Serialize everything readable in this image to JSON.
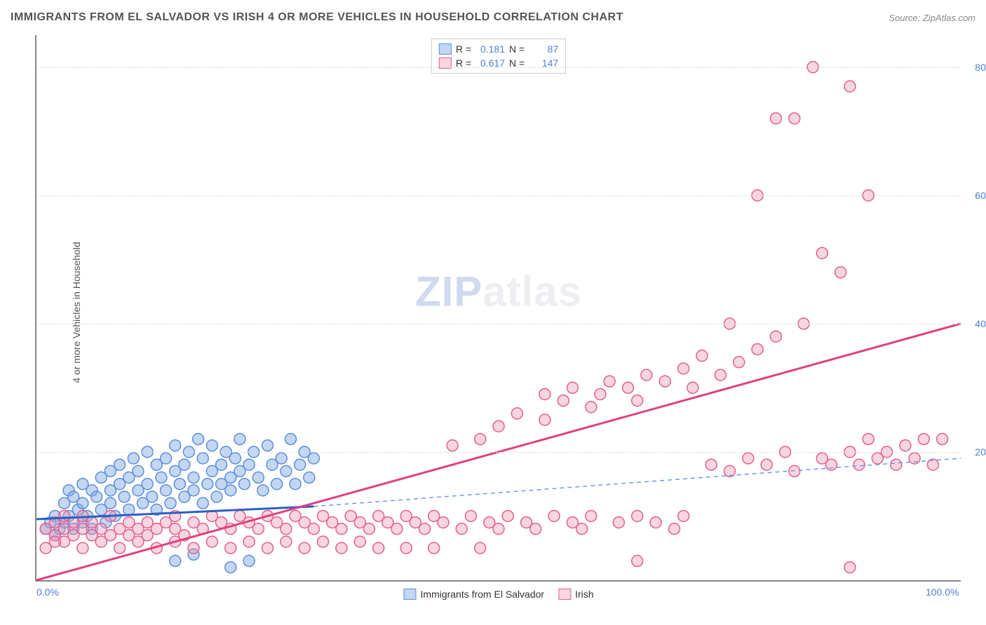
{
  "title": "IMMIGRANTS FROM EL SALVADOR VS IRISH 4 OR MORE VEHICLES IN HOUSEHOLD CORRELATION CHART",
  "source": "Source: ZipAtlas.com",
  "y_axis_label": "4 or more Vehicles in Household",
  "watermark": {
    "prefix": "ZIP",
    "suffix": "atlas"
  },
  "chart": {
    "type": "scatter",
    "xlim": [
      0,
      100
    ],
    "ylim": [
      0,
      85
    ],
    "x_ticks": [
      {
        "value": 0,
        "label": "0.0%"
      },
      {
        "value": 100,
        "label": "100.0%"
      }
    ],
    "y_ticks": [
      {
        "value": 20,
        "label": "20.0%"
      },
      {
        "value": 40,
        "label": "40.0%"
      },
      {
        "value": 60,
        "label": "60.0%"
      },
      {
        "value": 80,
        "label": "80.0%"
      }
    ],
    "grid_color": "#dddddd",
    "axis_color": "#888888",
    "background_color": "#ffffff",
    "marker_radius": 8,
    "marker_stroke_width": 1.5,
    "line_width_solid": 3,
    "line_width_dashed": 1.5,
    "series": [
      {
        "name": "Immigrants from El Salvador",
        "fill": "rgba(122,165,230,0.45)",
        "stroke": "#5b8fd6",
        "R": "0.181",
        "N": "87",
        "regression": {
          "x1": 0,
          "y1": 9.5,
          "x2": 30,
          "y2": 11.5,
          "style": "solid",
          "color": "#2b5fc4"
        },
        "regression_ext": {
          "x1": 30,
          "y1": 11.5,
          "x2": 100,
          "y2": 19,
          "style": "dashed",
          "color": "#6a9be0"
        },
        "points": [
          [
            1,
            8
          ],
          [
            1.5,
            9
          ],
          [
            2,
            10
          ],
          [
            2,
            7
          ],
          [
            2.5,
            8
          ],
          [
            3,
            12
          ],
          [
            3,
            9
          ],
          [
            3.5,
            14
          ],
          [
            3.5,
            10
          ],
          [
            4,
            8
          ],
          [
            4,
            13
          ],
          [
            4.5,
            11
          ],
          [
            5,
            15
          ],
          [
            5,
            9
          ],
          [
            5,
            12
          ],
          [
            5.5,
            10
          ],
          [
            6,
            14
          ],
          [
            6,
            8
          ],
          [
            6.5,
            13
          ],
          [
            7,
            16
          ],
          [
            7,
            11
          ],
          [
            7.5,
            9
          ],
          [
            8,
            17
          ],
          [
            8,
            12
          ],
          [
            8,
            14
          ],
          [
            8.5,
            10
          ],
          [
            9,
            15
          ],
          [
            9,
            18
          ],
          [
            9.5,
            13
          ],
          [
            10,
            11
          ],
          [
            10,
            16
          ],
          [
            10.5,
            19
          ],
          [
            11,
            14
          ],
          [
            11,
            17
          ],
          [
            11.5,
            12
          ],
          [
            12,
            15
          ],
          [
            12,
            20
          ],
          [
            12.5,
            13
          ],
          [
            13,
            18
          ],
          [
            13,
            11
          ],
          [
            13.5,
            16
          ],
          [
            14,
            14
          ],
          [
            14,
            19
          ],
          [
            14.5,
            12
          ],
          [
            15,
            17
          ],
          [
            15,
            21
          ],
          [
            15.5,
            15
          ],
          [
            16,
            13
          ],
          [
            16,
            18
          ],
          [
            16.5,
            20
          ],
          [
            17,
            14
          ],
          [
            17,
            16
          ],
          [
            17.5,
            22
          ],
          [
            18,
            12
          ],
          [
            18,
            19
          ],
          [
            18.5,
            15
          ],
          [
            19,
            17
          ],
          [
            19,
            21
          ],
          [
            19.5,
            13
          ],
          [
            20,
            18
          ],
          [
            20,
            15
          ],
          [
            20.5,
            20
          ],
          [
            21,
            16
          ],
          [
            21,
            14
          ],
          [
            21.5,
            19
          ],
          [
            22,
            22
          ],
          [
            22,
            17
          ],
          [
            22.5,
            15
          ],
          [
            23,
            18
          ],
          [
            23.5,
            20
          ],
          [
            24,
            16
          ],
          [
            24.5,
            14
          ],
          [
            25,
            21
          ],
          [
            25.5,
            18
          ],
          [
            26,
            15
          ],
          [
            26.5,
            19
          ],
          [
            27,
            17
          ],
          [
            27.5,
            22
          ],
          [
            28,
            15
          ],
          [
            28.5,
            18
          ],
          [
            29,
            20
          ],
          [
            29.5,
            16
          ],
          [
            30,
            19
          ],
          [
            21,
            2
          ],
          [
            23,
            3
          ],
          [
            17,
            4
          ],
          [
            15,
            3
          ]
        ]
      },
      {
        "name": "Irish",
        "fill": "rgba(240,150,175,0.40)",
        "stroke": "#e06090",
        "R": "0.617",
        "N": "147",
        "regression": {
          "x1": 0,
          "y1": 0,
          "x2": 100,
          "y2": 40,
          "style": "solid",
          "color": "#e04080"
        },
        "points": [
          [
            1,
            8
          ],
          [
            2,
            7
          ],
          [
            2,
            9
          ],
          [
            3,
            8
          ],
          [
            3,
            10
          ],
          [
            4,
            7
          ],
          [
            4,
            9
          ],
          [
            5,
            8
          ],
          [
            5,
            10
          ],
          [
            6,
            7
          ],
          [
            6,
            9
          ],
          [
            7,
            8
          ],
          [
            8,
            7
          ],
          [
            8,
            10
          ],
          [
            9,
            8
          ],
          [
            10,
            9
          ],
          [
            10,
            7
          ],
          [
            11,
            8
          ],
          [
            12,
            9
          ],
          [
            12,
            7
          ],
          [
            13,
            8
          ],
          [
            14,
            9
          ],
          [
            15,
            8
          ],
          [
            15,
            10
          ],
          [
            16,
            7
          ],
          [
            17,
            9
          ],
          [
            18,
            8
          ],
          [
            19,
            10
          ],
          [
            20,
            9
          ],
          [
            21,
            8
          ],
          [
            22,
            10
          ],
          [
            23,
            9
          ],
          [
            24,
            8
          ],
          [
            25,
            10
          ],
          [
            26,
            9
          ],
          [
            27,
            8
          ],
          [
            28,
            10
          ],
          [
            29,
            9
          ],
          [
            30,
            8
          ],
          [
            31,
            10
          ],
          [
            32,
            9
          ],
          [
            33,
            8
          ],
          [
            34,
            10
          ],
          [
            35,
            9
          ],
          [
            36,
            8
          ],
          [
            37,
            10
          ],
          [
            38,
            9
          ],
          [
            39,
            8
          ],
          [
            40,
            10
          ],
          [
            41,
            9
          ],
          [
            42,
            8
          ],
          [
            43,
            10
          ],
          [
            44,
            9
          ],
          [
            45,
            21
          ],
          [
            46,
            8
          ],
          [
            47,
            10
          ],
          [
            48,
            22
          ],
          [
            49,
            9
          ],
          [
            50,
            8
          ],
          [
            50,
            24
          ],
          [
            51,
            10
          ],
          [
            52,
            26
          ],
          [
            53,
            9
          ],
          [
            54,
            8
          ],
          [
            55,
            25
          ],
          [
            55,
            29
          ],
          [
            56,
            10
          ],
          [
            57,
            28
          ],
          [
            58,
            9
          ],
          [
            58,
            30
          ],
          [
            59,
            8
          ],
          [
            60,
            27
          ],
          [
            60,
            10
          ],
          [
            61,
            29
          ],
          [
            62,
            31
          ],
          [
            63,
            9
          ],
          [
            64,
            30
          ],
          [
            65,
            28
          ],
          [
            65,
            10
          ],
          [
            66,
            32
          ],
          [
            67,
            9
          ],
          [
            68,
            31
          ],
          [
            69,
            8
          ],
          [
            70,
            33
          ],
          [
            70,
            10
          ],
          [
            71,
            30
          ],
          [
            72,
            35
          ],
          [
            73,
            18
          ],
          [
            74,
            32
          ],
          [
            75,
            17
          ],
          [
            75,
            40
          ],
          [
            76,
            34
          ],
          [
            77,
            19
          ],
          [
            78,
            36
          ],
          [
            78,
            60
          ],
          [
            79,
            18
          ],
          [
            80,
            38
          ],
          [
            80,
            72
          ],
          [
            81,
            20
          ],
          [
            82,
            72
          ],
          [
            82,
            17
          ],
          [
            83,
            40
          ],
          [
            84,
            80
          ],
          [
            85,
            19
          ],
          [
            85,
            51
          ],
          [
            86,
            18
          ],
          [
            87,
            48
          ],
          [
            88,
            20
          ],
          [
            88,
            77
          ],
          [
            89,
            18
          ],
          [
            90,
            60
          ],
          [
            90,
            22
          ],
          [
            91,
            19
          ],
          [
            92,
            20
          ],
          [
            93,
            18
          ],
          [
            94,
            21
          ],
          [
            95,
            19
          ],
          [
            96,
            22
          ],
          [
            97,
            18
          ],
          [
            98,
            22
          ],
          [
            88,
            2
          ],
          [
            65,
            3
          ],
          [
            48,
            5
          ],
          [
            43,
            5
          ],
          [
            40,
            5
          ],
          [
            37,
            5
          ],
          [
            35,
            6
          ],
          [
            33,
            5
          ],
          [
            31,
            6
          ],
          [
            29,
            5
          ],
          [
            27,
            6
          ],
          [
            25,
            5
          ],
          [
            23,
            6
          ],
          [
            21,
            5
          ],
          [
            19,
            6
          ],
          [
            17,
            5
          ],
          [
            15,
            6
          ],
          [
            13,
            5
          ],
          [
            11,
            6
          ],
          [
            9,
            5
          ],
          [
            7,
            6
          ],
          [
            5,
            5
          ],
          [
            3,
            6
          ],
          [
            1,
            5
          ],
          [
            2,
            6
          ]
        ]
      }
    ]
  },
  "legend_top_labels": {
    "R": "R =",
    "N": "N ="
  },
  "legend_bottom": [
    {
      "series": 0
    },
    {
      "series": 1
    }
  ]
}
